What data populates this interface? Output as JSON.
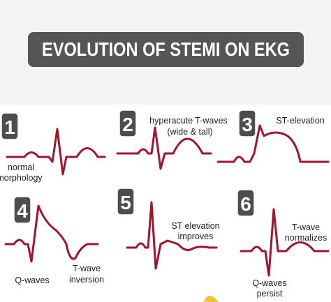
{
  "header": {
    "title": "EVOLUTION OF STEMI ON EKG"
  },
  "panels": [
    {
      "number": "1",
      "labels": [
        "normal",
        "morphology"
      ]
    },
    {
      "number": "2",
      "labels": [
        "hyperacute T-waves",
        "(wide & tall)"
      ]
    },
    {
      "number": "3",
      "labels": [
        "ST-elevation"
      ]
    },
    {
      "number": "4",
      "labels": [
        "Q-waves",
        "T-wave",
        "inversion"
      ]
    },
    {
      "number": "5",
      "labels": [
        "ST elevation",
        "improves"
      ]
    },
    {
      "number": "6",
      "labels": [
        "T-wave",
        "normalizes",
        "Q-waves",
        "persist"
      ]
    }
  ]
}
